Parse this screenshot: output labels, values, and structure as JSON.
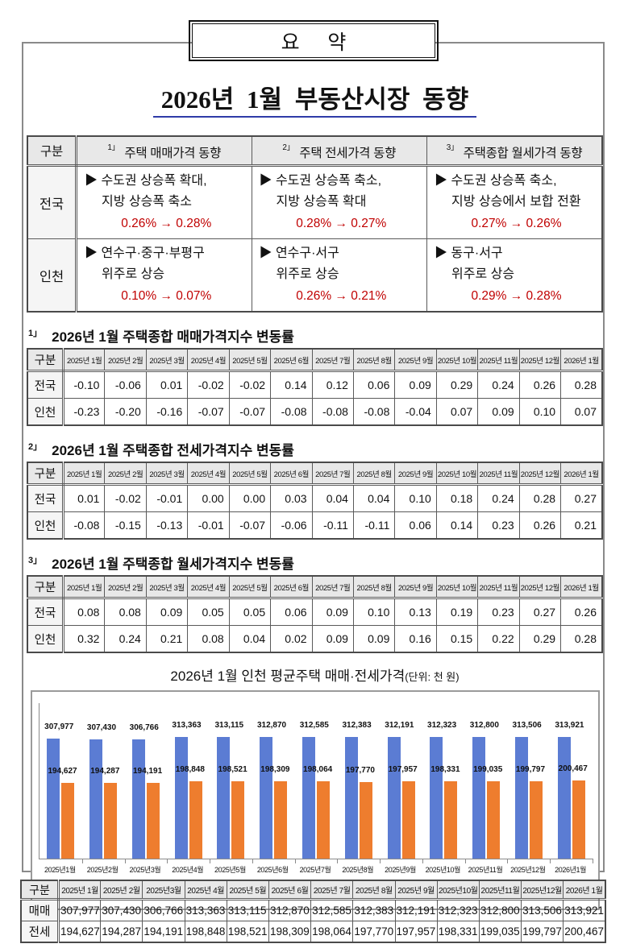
{
  "page": {
    "summary_box_label": "요     약",
    "title": "2026년 1월 부동산시장 동향"
  },
  "colors": {
    "sale_bar": "#5b7cd3",
    "jeonse_bar": "#ee7d2e",
    "rate_red": "#c00000",
    "title_underline": "#2e3ba8"
  },
  "overview_table": {
    "corner_label": "구분",
    "columns": [
      {
        "marker": "1」",
        "title": "주택 매매가격 동향"
      },
      {
        "marker": "2」",
        "title": "주택 전세가격 동향"
      },
      {
        "marker": "3」",
        "title": "주택종합 월세가격 동향"
      }
    ],
    "rows": [
      {
        "label": "전국",
        "cells": [
          {
            "bullet": "▶",
            "line1": "수도권 상승폭 확대,",
            "line2": "지방 상승폭 축소",
            "rate": "0.26% → 0.28%"
          },
          {
            "bullet": "▶",
            "line1": "수도권 상승폭 축소,",
            "line2": "지방 상승폭 확대",
            "rate": "0.28% → 0.27%"
          },
          {
            "bullet": "▶",
            "line1": "수도권 상승폭 축소,",
            "line2": "지방 상승에서 보합 전환",
            "rate": "0.27% → 0.26%"
          }
        ]
      },
      {
        "label": "인천",
        "cells": [
          {
            "bullet": "▶",
            "line1": "연수구·중구·부평구",
            "line2": "위주로 상승",
            "rate": "0.10% → 0.07%"
          },
          {
            "bullet": "▶",
            "line1": "연수구·서구",
            "line2": "위주로 상승",
            "rate": "0.26% → 0.21%"
          },
          {
            "bullet": "▶",
            "line1": "동구·서구",
            "line2": "위주로 상승",
            "rate": "0.29% → 0.28%"
          }
        ]
      }
    ]
  },
  "sections": [
    {
      "marker": "1」",
      "heading": "2026년 1월 주택종합 매매가격지수 변동률",
      "table": {
        "corner": "구분",
        "months": [
          "2025년 1월",
          "2025년 2월",
          "2025년 3월",
          "2025년 4월",
          "2025년 5월",
          "2025년 6월",
          "2025년 7월",
          "2025년 8월",
          "2025년 9월",
          "2025년 10월",
          "2025년 11월",
          "2025년 12월",
          "2026년 1월"
        ],
        "rows": [
          {
            "label": "전국",
            "values": [
              "-0.10",
              "-0.06",
              "0.01",
              "-0.02",
              "-0.02",
              "0.14",
              "0.12",
              "0.06",
              "0.09",
              "0.29",
              "0.24",
              "0.26",
              "0.28"
            ]
          },
          {
            "label": "인천",
            "values": [
              "-0.23",
              "-0.20",
              "-0.16",
              "-0.07",
              "-0.07",
              "-0.08",
              "-0.08",
              "-0.08",
              "-0.04",
              "0.07",
              "0.09",
              "0.10",
              "0.07"
            ]
          }
        ]
      }
    },
    {
      "marker": "2」",
      "heading": "2026년 1월 주택종합 전세가격지수 변동률",
      "table": {
        "corner": "구분",
        "months": [
          "2025년 1월",
          "2025년 2월",
          "2025년 3월",
          "2025년 4월",
          "2025년 5월",
          "2025년 6월",
          "2025년 7월",
          "2025년 8월",
          "2025년 9월",
          "2025년 10월",
          "2025년 11월",
          "2025년 12월",
          "2026년 1월"
        ],
        "rows": [
          {
            "label": "전국",
            "values": [
              "0.01",
              "-0.02",
              "-0.01",
              "0.00",
              "0.00",
              "0.03",
              "0.04",
              "0.04",
              "0.10",
              "0.18",
              "0.24",
              "0.28",
              "0.27"
            ]
          },
          {
            "label": "인천",
            "values": [
              "-0.08",
              "-0.15",
              "-0.13",
              "-0.01",
              "-0.07",
              "-0.06",
              "-0.11",
              "-0.11",
              "0.06",
              "0.14",
              "0.23",
              "0.26",
              "0.21"
            ]
          }
        ]
      }
    },
    {
      "marker": "3」",
      "heading": "2026년 1월 주택종합 월세가격지수 변동률",
      "table": {
        "corner": "구분",
        "months": [
          "2025년 1월",
          "2025년 2월",
          "2025년 3월",
          "2025년 4월",
          "2025년 5월",
          "2025년 6월",
          "2025년 7월",
          "2025년 8월",
          "2025년 9월",
          "2025년 10월",
          "2025년 11월",
          "2025년 12월",
          "2026년 1월"
        ],
        "rows": [
          {
            "label": "전국",
            "values": [
              "0.08",
              "0.08",
              "0.09",
              "0.05",
              "0.05",
              "0.06",
              "0.09",
              "0.10",
              "0.13",
              "0.19",
              "0.23",
              "0.27",
              "0.26"
            ]
          },
          {
            "label": "인천",
            "values": [
              "0.32",
              "0.24",
              "0.21",
              "0.08",
              "0.04",
              "0.02",
              "0.09",
              "0.09",
              "0.16",
              "0.15",
              "0.22",
              "0.29",
              "0.28"
            ]
          }
        ]
      }
    }
  ],
  "chart": {
    "title": "2026년 1월 인천 평균주택 매매·전세가격",
    "title_unit": "(단위: 천 원)",
    "legend": [
      {
        "label": "매매",
        "color": "#5b7cd3"
      },
      {
        "label": "전세",
        "color": "#ee7d2e"
      }
    ]
  },
  "chart_data": {
    "type": "bar",
    "title": "2026년 1월 인천 평균주택 매매·전세가격(단위: 천 원)",
    "categories": [
      "2025년1월",
      "2025년2월",
      "2025년3월",
      "2025년4월",
      "2025년5월",
      "2025년6월",
      "2025년7월",
      "2025년8월",
      "2025년9월",
      "2025년10월",
      "2025년11월",
      "2025년12월",
      "2026년1월"
    ],
    "series": [
      {
        "name": "매매",
        "values": [
          307977,
          307430,
          306766,
          313363,
          313115,
          312870,
          312585,
          312383,
          312191,
          312323,
          312800,
          313506,
          313921
        ]
      },
      {
        "name": "전세",
        "values": [
          194627,
          194287,
          194191,
          198848,
          198521,
          198309,
          198064,
          197770,
          197957,
          198331,
          199035,
          199797,
          200467
        ]
      }
    ],
    "ylim": [
      0,
      400000
    ],
    "unit": "천 원",
    "data_labels": true,
    "grid": false,
    "legend_position": "bottom"
  },
  "bottom_table": {
    "corner": "구분",
    "months": [
      "2025년 1월",
      "2025년 2월",
      "2025년3월",
      "2025년 4월",
      "2025년 5월",
      "2025년 6월",
      "2025년 7월",
      "2025년 8월",
      "2025년 9월",
      "2025년10월",
      "2025년11월",
      "2025년12월",
      "2026년 1월"
    ],
    "rows": [
      {
        "label": "매매",
        "values": [
          "307,977",
          "307,430",
          "306,766",
          "313,363",
          "313,115",
          "312,870",
          "312,585",
          "312,383",
          "312,191",
          "312,323",
          "312,800",
          "313,506",
          "313,921"
        ]
      },
      {
        "label": "전세",
        "values": [
          "194,627",
          "194,287",
          "194,191",
          "198,848",
          "198,521",
          "198,309",
          "198,064",
          "197,770",
          "197,957",
          "198,331",
          "199,035",
          "199,797",
          "200,467"
        ]
      }
    ]
  }
}
